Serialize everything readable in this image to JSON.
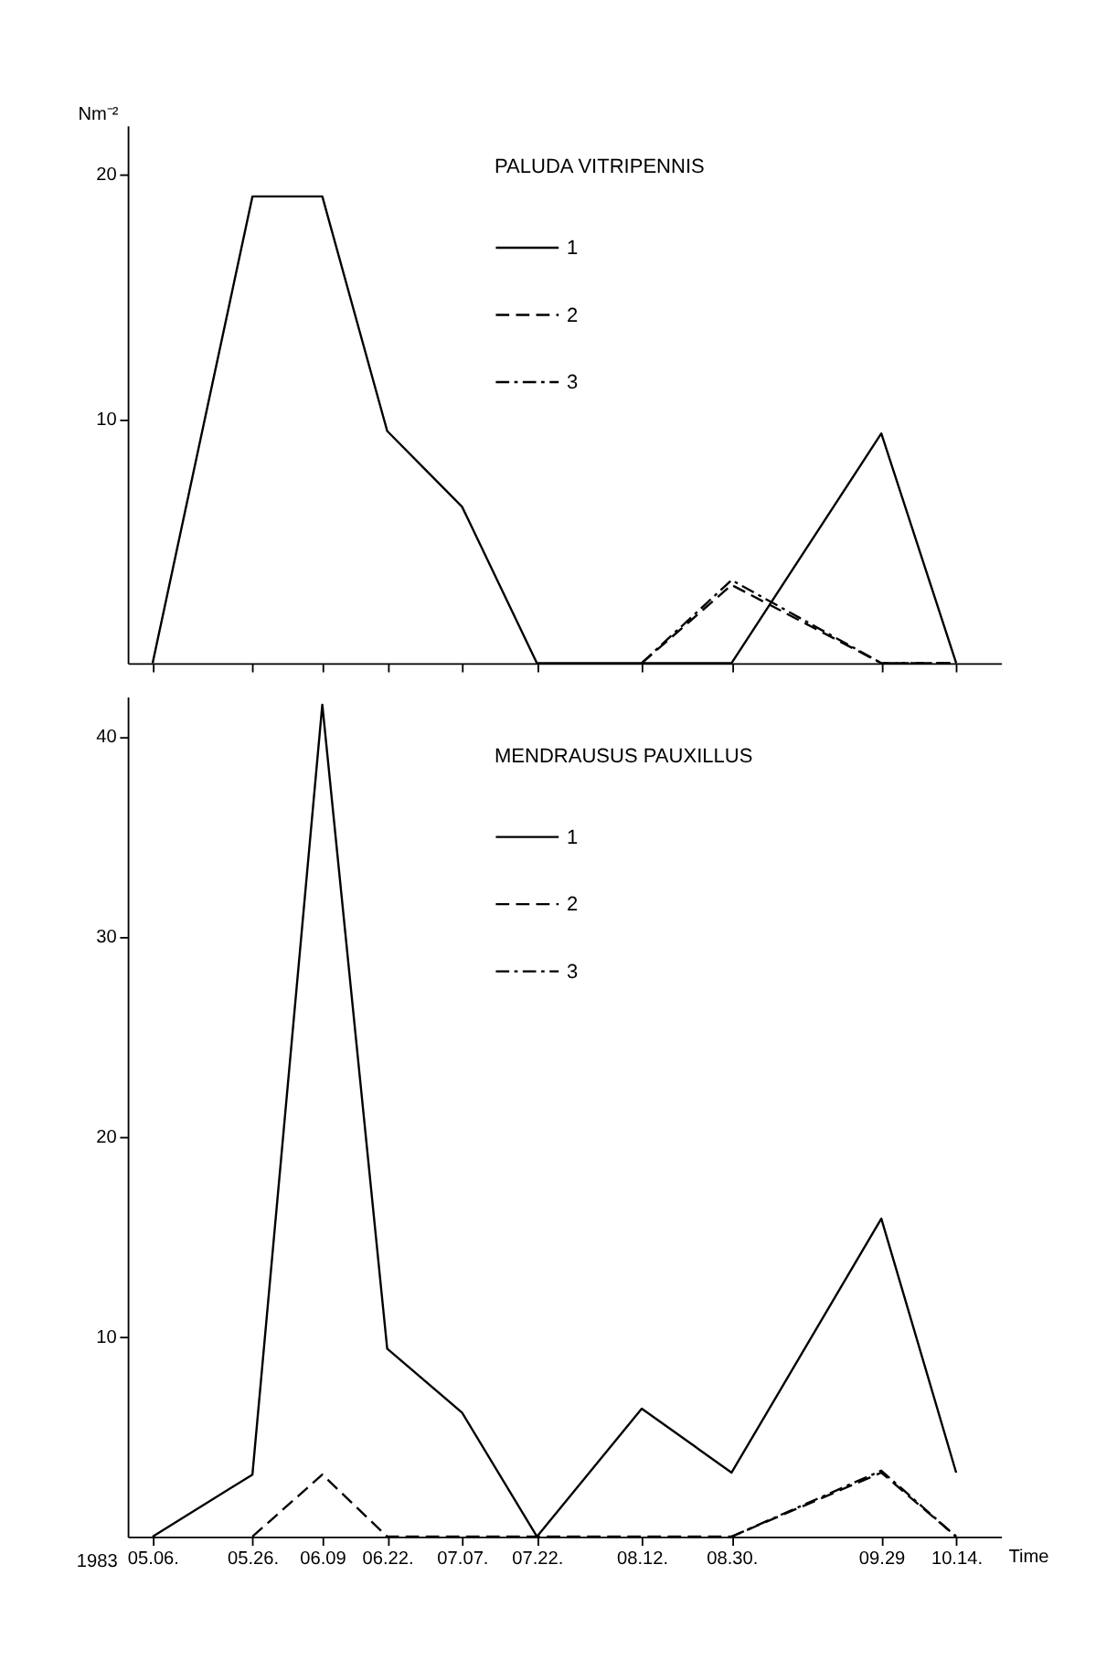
{
  "chart_data": [
    {
      "type": "line",
      "legend_title": "PALUDA VITRIPENNIS",
      "ylabel": "Nm⁻²",
      "x": [
        "1983-05-06",
        "1983-05-26",
        "1983-06-09",
        "1983-06-22",
        "1983-07-07",
        "1983-07-22",
        "1983-08-12",
        "1983-08-30",
        "1983-09-29",
        "1983-10-14"
      ],
      "xlim": [
        "1983-05-01",
        "1983-10-23"
      ],
      "ylim": [
        0,
        22
      ],
      "yticks": [
        10,
        20
      ],
      "xticks": [
        {
          "value": "1983-05-06",
          "label": null
        },
        {
          "value": "1983-05-26",
          "label": null
        },
        {
          "value": "1983-06-09",
          "label": null
        },
        {
          "value": "1983-06-22",
          "label": null
        },
        {
          "value": "1983-07-07",
          "label": null
        },
        {
          "value": "1983-07-22",
          "label": null
        },
        {
          "value": "1983-08-12",
          "label": null
        },
        {
          "value": "1983-08-30",
          "label": null
        },
        {
          "value": "1983-09-29",
          "label": null
        },
        {
          "value": "1983-10-14",
          "label": null
        }
      ],
      "tick_labels": "y",
      "grid": false,
      "legend": "top",
      "marker": "none",
      "series": [
        {
          "name": "1",
          "color": "#000000",
          "line_style": "solid",
          "values": [
            0,
            19.1,
            19.1,
            9.5,
            6.4,
            0,
            0,
            0,
            9.4,
            0
          ]
        },
        {
          "name": "2",
          "color": "#000000",
          "line_style": "dashed",
          "values": [
            null,
            null,
            null,
            null,
            null,
            null,
            0,
            3.2,
            0,
            0
          ]
        },
        {
          "name": "3",
          "color": "#000000",
          "line_style": "dashdot",
          "values": [
            null,
            null,
            null,
            null,
            null,
            null,
            0,
            3.4,
            0,
            0
          ]
        }
      ]
    },
    {
      "type": "line",
      "legend_title": "MENDRAUSUS PAUXILLUS",
      "xlabel": "Time",
      "annotations": [
        "1983"
      ],
      "x": [
        "1983-05-06",
        "1983-05-26",
        "1983-06-09",
        "1983-06-22",
        "1983-07-07",
        "1983-07-22",
        "1983-08-12",
        "1983-08-30",
        "1983-09-29",
        "1983-10-14"
      ],
      "xlim": [
        "1983-05-01",
        "1983-10-23"
      ],
      "ylim": [
        0,
        42
      ],
      "yticks": [
        10,
        20,
        30,
        40
      ],
      "xticks": [
        {
          "value": "1983-05-06",
          "label": "05.06."
        },
        {
          "value": "1983-05-26",
          "label": "05.26."
        },
        {
          "value": "1983-06-09",
          "label": "06.09"
        },
        {
          "value": "1983-06-22",
          "label": "06.22."
        },
        {
          "value": "1983-07-07",
          "label": "07.07."
        },
        {
          "value": "1983-07-22",
          "label": "07.22."
        },
        {
          "value": "1983-08-12",
          "label": "08.12."
        },
        {
          "value": "1983-08-30",
          "label": "08.30."
        },
        {
          "value": "1983-09-29",
          "label": "09.29"
        },
        {
          "value": "1983-10-14",
          "label": "10.14."
        }
      ],
      "grid": false,
      "legend": "top",
      "marker": "none",
      "series": [
        {
          "name": "1",
          "color": "#000000",
          "line_style": "solid",
          "values": [
            0,
            3.1,
            41.6,
            9.4,
            6.2,
            0,
            6.4,
            3.2,
            15.9,
            3.2
          ]
        },
        {
          "name": "2",
          "color": "#000000",
          "line_style": "dashed",
          "values": [
            null,
            0,
            3.1,
            0,
            0,
            0,
            0,
            0,
            3.2,
            0
          ]
        },
        {
          "name": "3",
          "color": "#000000",
          "line_style": "dashdot",
          "values": [
            null,
            null,
            null,
            null,
            null,
            null,
            null,
            0,
            3.3,
            0
          ]
        }
      ]
    }
  ]
}
